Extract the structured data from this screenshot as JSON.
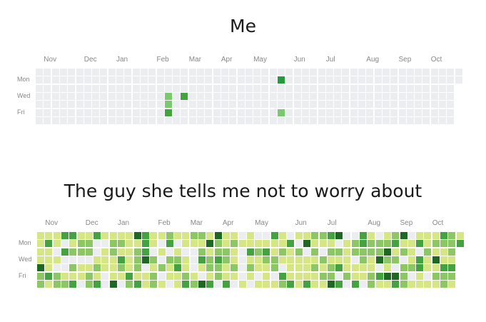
{
  "panels": [
    {
      "title": "Me",
      "months": [
        "Nov",
        "Dec",
        "Jan",
        "Feb",
        "Mar",
        "Apr",
        "May",
        "Jun",
        "Jul",
        "Aug",
        "Sep",
        "Oct"
      ],
      "day_labels": [
        "Mon",
        "Wed",
        "Fri"
      ],
      "highlights": [
        {
          "week": 30,
          "day": 1,
          "color": "#239a3b"
        },
        {
          "week": 16,
          "day": 3,
          "color": "#7bc96f"
        },
        {
          "week": 16,
          "day": 4,
          "color": "#7bc96f"
        },
        {
          "week": 16,
          "day": 5,
          "color": "#44a340"
        },
        {
          "week": 18,
          "day": 3,
          "color": "#44a340"
        },
        {
          "week": 30,
          "day": 5,
          "color": "#7bc96f"
        }
      ]
    },
    {
      "title": "The guy she tells me not to worry about",
      "months": [
        "Nov",
        "Dec",
        "Jan",
        "Feb",
        "Mar",
        "Apr",
        "May",
        "Jun",
        "Jul",
        "Aug",
        "Sep",
        "Oct"
      ],
      "day_labels": [
        "Mon",
        "Wed",
        "Fri"
      ]
    }
  ],
  "colors": {
    "empty": "#ebedf0",
    "level1": "#d6e685",
    "level2": "#8cc665",
    "level3": "#44a340",
    "level4": "#1e6823"
  }
}
